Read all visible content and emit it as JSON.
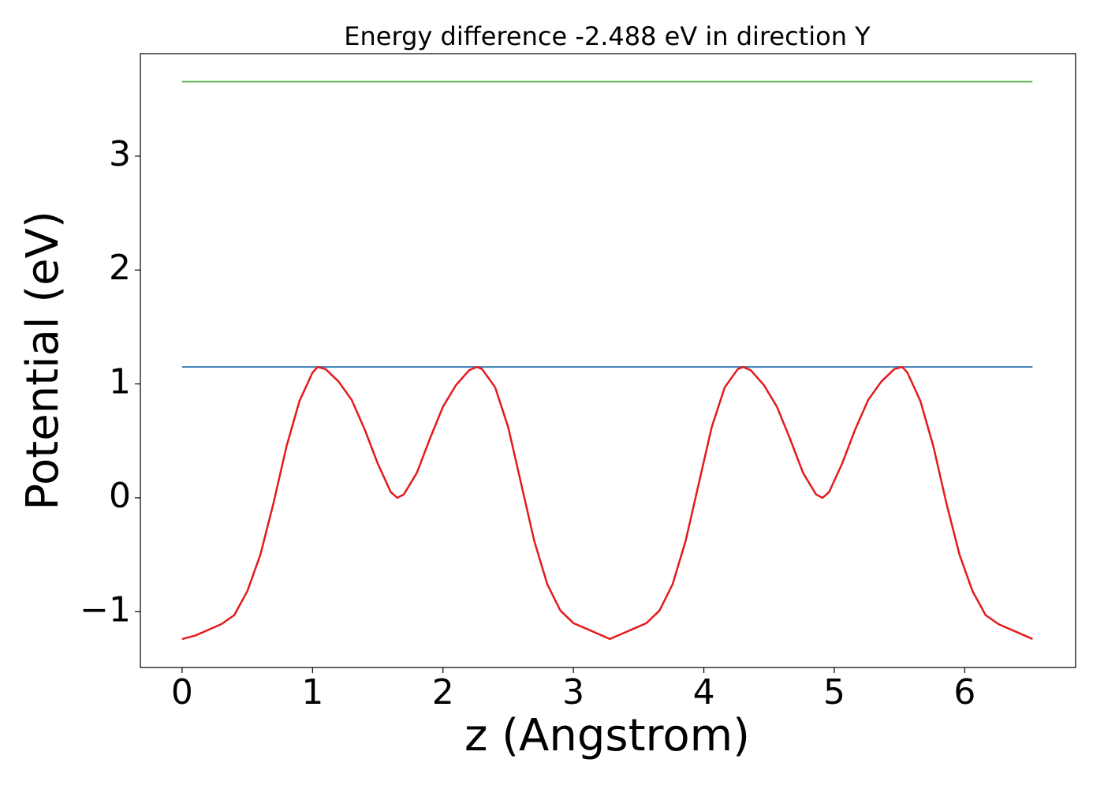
{
  "chart_data": {
    "type": "line",
    "title": "Energy difference -2.488 eV in direction Y",
    "x_label": "z (Angstrom)",
    "y_label": "Potential (eV)",
    "xlim": [
      -0.32,
      6.85
    ],
    "ylim": [
      -1.49,
      3.9
    ],
    "xticks": [
      0,
      1,
      2,
      3,
      4,
      5,
      6
    ],
    "yticks": [
      {
        "value": -1,
        "label": "−1"
      },
      0,
      1,
      2,
      3
    ],
    "grid": false,
    "series": [
      {
        "color": "#4daf4a",
        "x": [
          0,
          6.52
        ],
        "values": [
          3.654,
          3.654
        ]
      },
      {
        "color": "#377eb8",
        "x": [
          0,
          6.52
        ],
        "values": [
          1.149,
          1.149
        ]
      },
      {
        "color": "#e41a1c",
        "x": [
          0,
          0.1,
          0.2,
          0.3,
          0.4,
          0.5,
          0.6,
          0.7,
          0.8,
          0.9,
          1.0,
          1.04,
          1.1,
          1.2,
          1.3,
          1.4,
          1.5,
          1.6,
          1.65,
          1.7,
          1.8,
          1.9,
          2.0,
          2.1,
          2.2,
          2.26,
          2.3,
          2.4,
          2.5,
          2.6,
          2.7,
          2.8,
          2.9,
          3.0,
          3.1,
          3.2,
          3.28,
          3.36,
          3.46,
          3.56,
          3.66,
          3.76,
          3.86,
          3.96,
          4.06,
          4.16,
          4.26,
          4.3,
          4.36,
          4.46,
          4.56,
          4.66,
          4.76,
          4.86,
          4.91,
          4.96,
          5.06,
          5.16,
          5.26,
          5.36,
          5.46,
          5.52,
          5.56,
          5.66,
          5.76,
          5.86,
          5.96,
          6.06,
          6.16,
          6.26,
          6.36,
          6.46,
          6.52
        ],
        "values": [
          -1.24,
          -1.21,
          -1.16,
          -1.11,
          -1.03,
          -0.82,
          -0.5,
          -0.05,
          0.45,
          0.85,
          1.1,
          1.149,
          1.13,
          1.02,
          0.86,
          0.6,
          0.3,
          0.05,
          0.0,
          0.03,
          0.22,
          0.52,
          0.8,
          0.99,
          1.12,
          1.149,
          1.13,
          0.97,
          0.62,
          0.12,
          -0.38,
          -0.76,
          -0.99,
          -1.1,
          -1.15,
          -1.2,
          -1.24,
          -1.2,
          -1.15,
          -1.1,
          -0.99,
          -0.76,
          -0.38,
          0.12,
          0.62,
          0.97,
          1.13,
          1.149,
          1.12,
          0.99,
          0.8,
          0.52,
          0.22,
          0.03,
          0.0,
          0.05,
          0.3,
          0.6,
          0.86,
          1.02,
          1.13,
          1.149,
          1.1,
          0.85,
          0.45,
          -0.05,
          -0.5,
          -0.82,
          -1.03,
          -1.11,
          -1.16,
          -1.21,
          -1.24
        ]
      }
    ]
  }
}
